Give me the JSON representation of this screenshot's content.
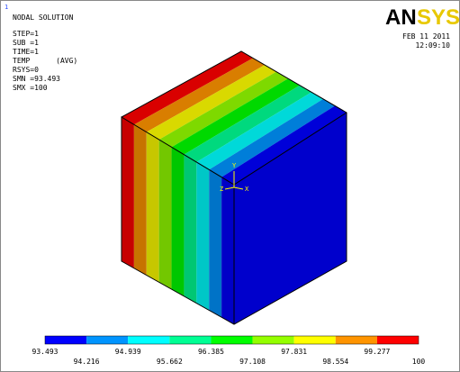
{
  "window_number": "1",
  "title": "NODAL SOLUTION",
  "info": [
    "STEP=1",
    "SUB =1",
    "TIME=1",
    "TEMP      (AVG)",
    "RSYS=0",
    "SMN =93.493",
    "SMX =100"
  ],
  "logo": [
    "AN",
    "SYS"
  ],
  "date": "FEB 11 2011",
  "time": "12:09:10",
  "triad": {
    "x": "X",
    "y": "Y",
    "z": "Z"
  },
  "legend": {
    "colors": [
      "#0000ff",
      "#0094ff",
      "#00ffff",
      "#00ff94",
      "#00ff00",
      "#94ff00",
      "#ffff00",
      "#ff9400",
      "#ff0000"
    ],
    "labels": [
      "93.493",
      "94.216",
      "94.939",
      "95.662",
      "96.385",
      "97.108",
      "97.831",
      "98.554",
      "99.277",
      "100"
    ]
  }
}
